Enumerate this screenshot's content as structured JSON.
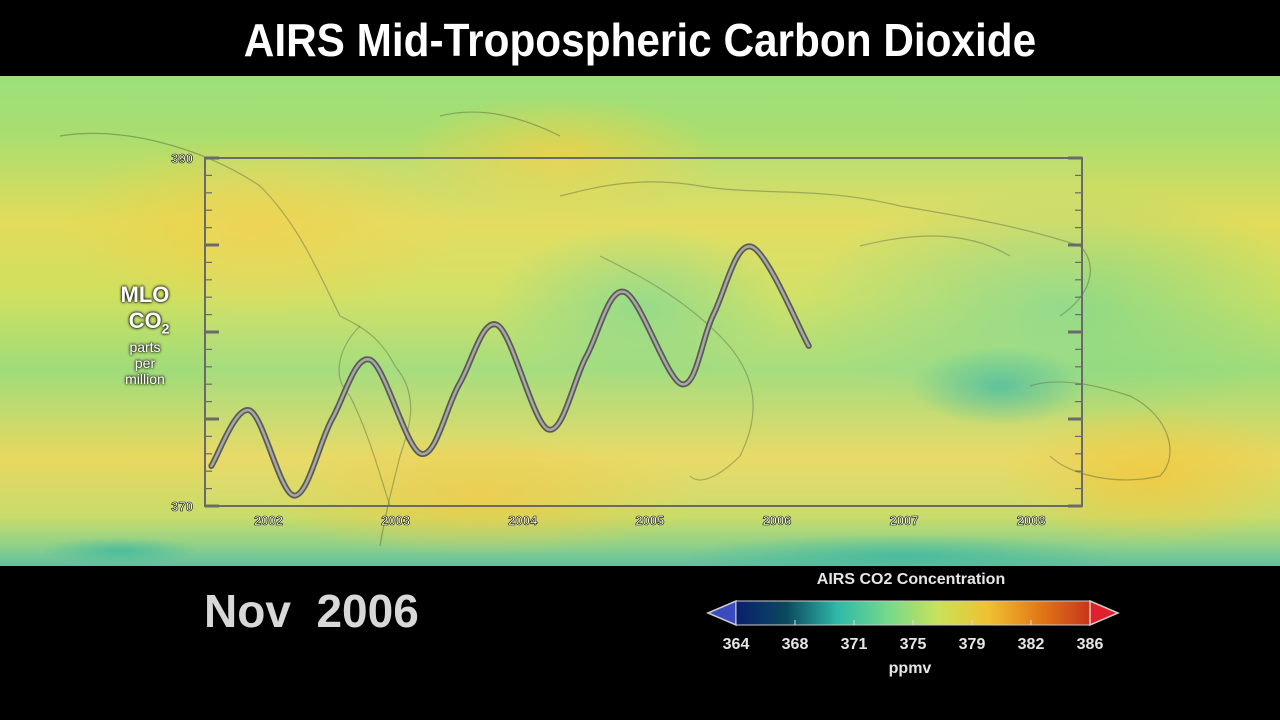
{
  "title": "AIRS Mid-Tropospheric Carbon Dioxide",
  "date_label": "Nov  2006",
  "colorbar": {
    "title": "AIRS CO2 Concentration",
    "units": "ppmv",
    "tick_labels": [
      "364",
      "368",
      "371",
      "375",
      "379",
      "382",
      "386"
    ],
    "colors": [
      "#0a1f6e",
      "#0b4a5e",
      "#2fb8a8",
      "#74d98a",
      "#c9e25a",
      "#f0c030",
      "#e07a18",
      "#c9351a"
    ],
    "under_color": "#3a4bbf",
    "over_color": "#e0202a"
  },
  "inset_label": {
    "line1": "MLO",
    "line2": "CO",
    "line2_sub": "2",
    "line3": "parts",
    "line4": "per",
    "line5": "million"
  },
  "chart_data": {
    "type": "line",
    "title": "",
    "xlabel": "",
    "ylabel": "MLO CO2 parts per million",
    "xlim": [
      2001.5,
      2008.4
    ],
    "ylim": [
      370,
      390
    ],
    "x_tick_labels": [
      "2002",
      "2003",
      "2004",
      "2005",
      "2006",
      "2007",
      "2008"
    ],
    "y_tick_labels": [
      "370",
      "390"
    ],
    "series": [
      {
        "x": [
          2001.55,
          2001.85,
          2002.2,
          2002.5,
          2002.8,
          2003.2,
          2003.5,
          2003.8,
          2004.2,
          2004.5,
          2004.8,
          2005.25,
          2005.5,
          2005.8,
          2006.25
        ],
        "values": [
          372.3,
          375.5,
          370.6,
          375.0,
          378.4,
          373.0,
          377.0,
          380.4,
          374.4,
          378.6,
          382.3,
          377.0,
          381.0,
          384.9,
          379.2
        ]
      }
    ]
  }
}
